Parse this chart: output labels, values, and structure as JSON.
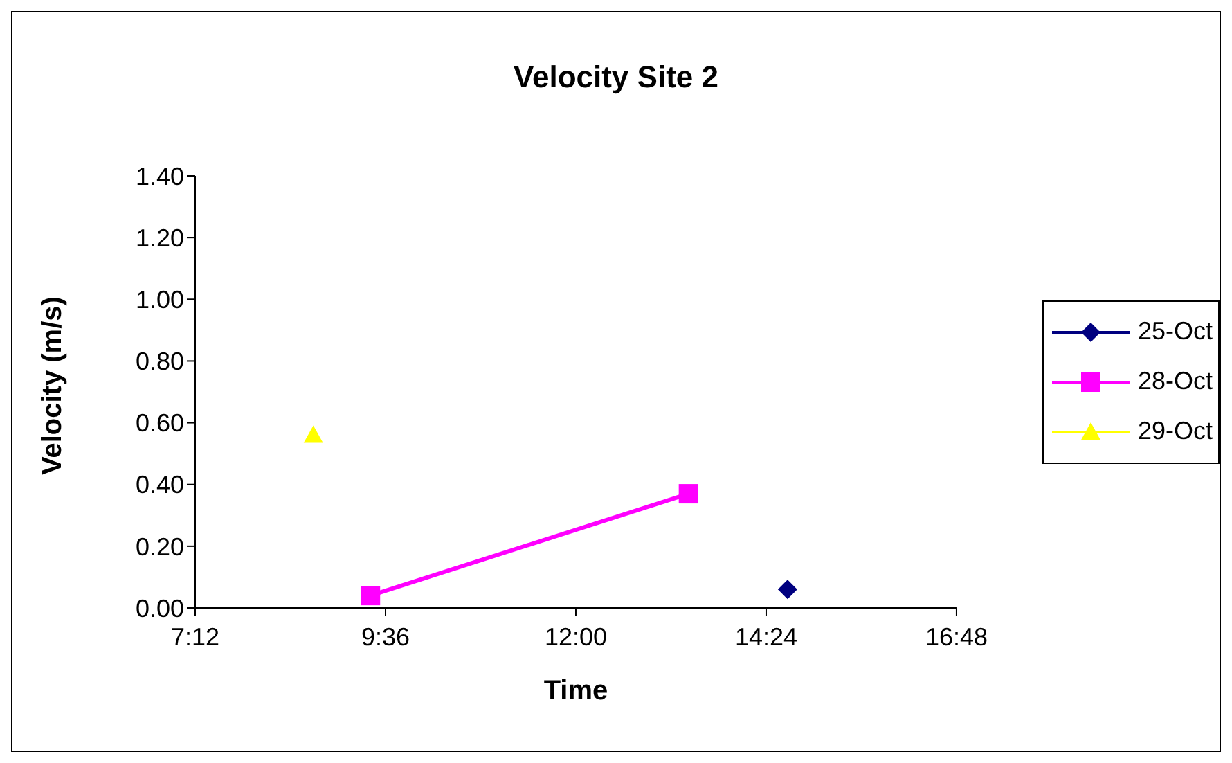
{
  "chart_data": {
    "type": "line",
    "title": "Velocity Site 2",
    "xlabel": "Time",
    "ylabel": "Velocity (m/s)",
    "xlim": [
      7.2,
      16.8
    ],
    "xticks": [
      {
        "value": 7.2,
        "label": "7:12"
      },
      {
        "value": 9.6,
        "label": "9:36"
      },
      {
        "value": 12,
        "label": "12:00"
      },
      {
        "value": 14.4,
        "label": "14:24"
      },
      {
        "value": 16.8,
        "label": "16:48"
      }
    ],
    "ylim": [
      0,
      1.4
    ],
    "yticks": [
      {
        "value": 0,
        "label": "0.00"
      },
      {
        "value": 0.2,
        "label": "0.20"
      },
      {
        "value": 0.4,
        "label": "0.40"
      },
      {
        "value": 0.6,
        "label": "0.60"
      },
      {
        "value": 0.8,
        "label": "0.80"
      },
      {
        "value": 1,
        "label": "1.00"
      },
      {
        "value": 1.2,
        "label": "1.20"
      },
      {
        "value": 1.4,
        "label": "1.40"
      }
    ],
    "grid": false,
    "legend": "right",
    "series": [
      {
        "name": "25-Oct",
        "color": "#000080",
        "marker": "diamond",
        "x": [
          14.67
        ],
        "values": [
          0.06
        ]
      },
      {
        "name": "28-Oct",
        "color": "#ff00ff",
        "marker": "square",
        "x": [
          9.41,
          13.42
        ],
        "values": [
          0.04,
          0.37
        ]
      },
      {
        "name": "29-Oct",
        "color": "#ffff00",
        "marker": "triangle",
        "x": [
          8.69
        ],
        "values": [
          0.56
        ]
      }
    ]
  }
}
